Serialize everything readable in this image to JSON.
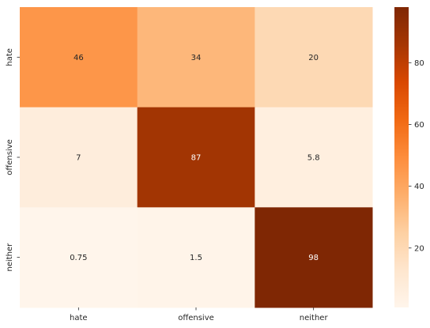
{
  "chart_data": {
    "type": "heatmap",
    "title": "",
    "xlabel": "",
    "ylabel": "",
    "x_categories": [
      "hate",
      "offensive",
      "neither"
    ],
    "y_categories": [
      "hate",
      "offensive",
      "neither"
    ],
    "values": [
      [
        46,
        34,
        20
      ],
      [
        7,
        87,
        5.8
      ],
      [
        0.75,
        1.5,
        98
      ]
    ],
    "value_labels": [
      [
        "46",
        "34",
        "20"
      ],
      [
        "7",
        "87",
        "5.8"
      ],
      [
        "0.75",
        "1.5",
        "98"
      ]
    ],
    "colormap": "Oranges",
    "vmin": 0.75,
    "vmax": 98,
    "colorbar": {
      "ticks": [
        20,
        40,
        60,
        80
      ],
      "tick_labels": [
        "20",
        "40",
        "60",
        "80"
      ],
      "placement": "right"
    },
    "colors": {
      "low": "#fff5eb",
      "high": "#7f2704",
      "text_dark": "#262626",
      "text_light": "#ffffff"
    }
  }
}
